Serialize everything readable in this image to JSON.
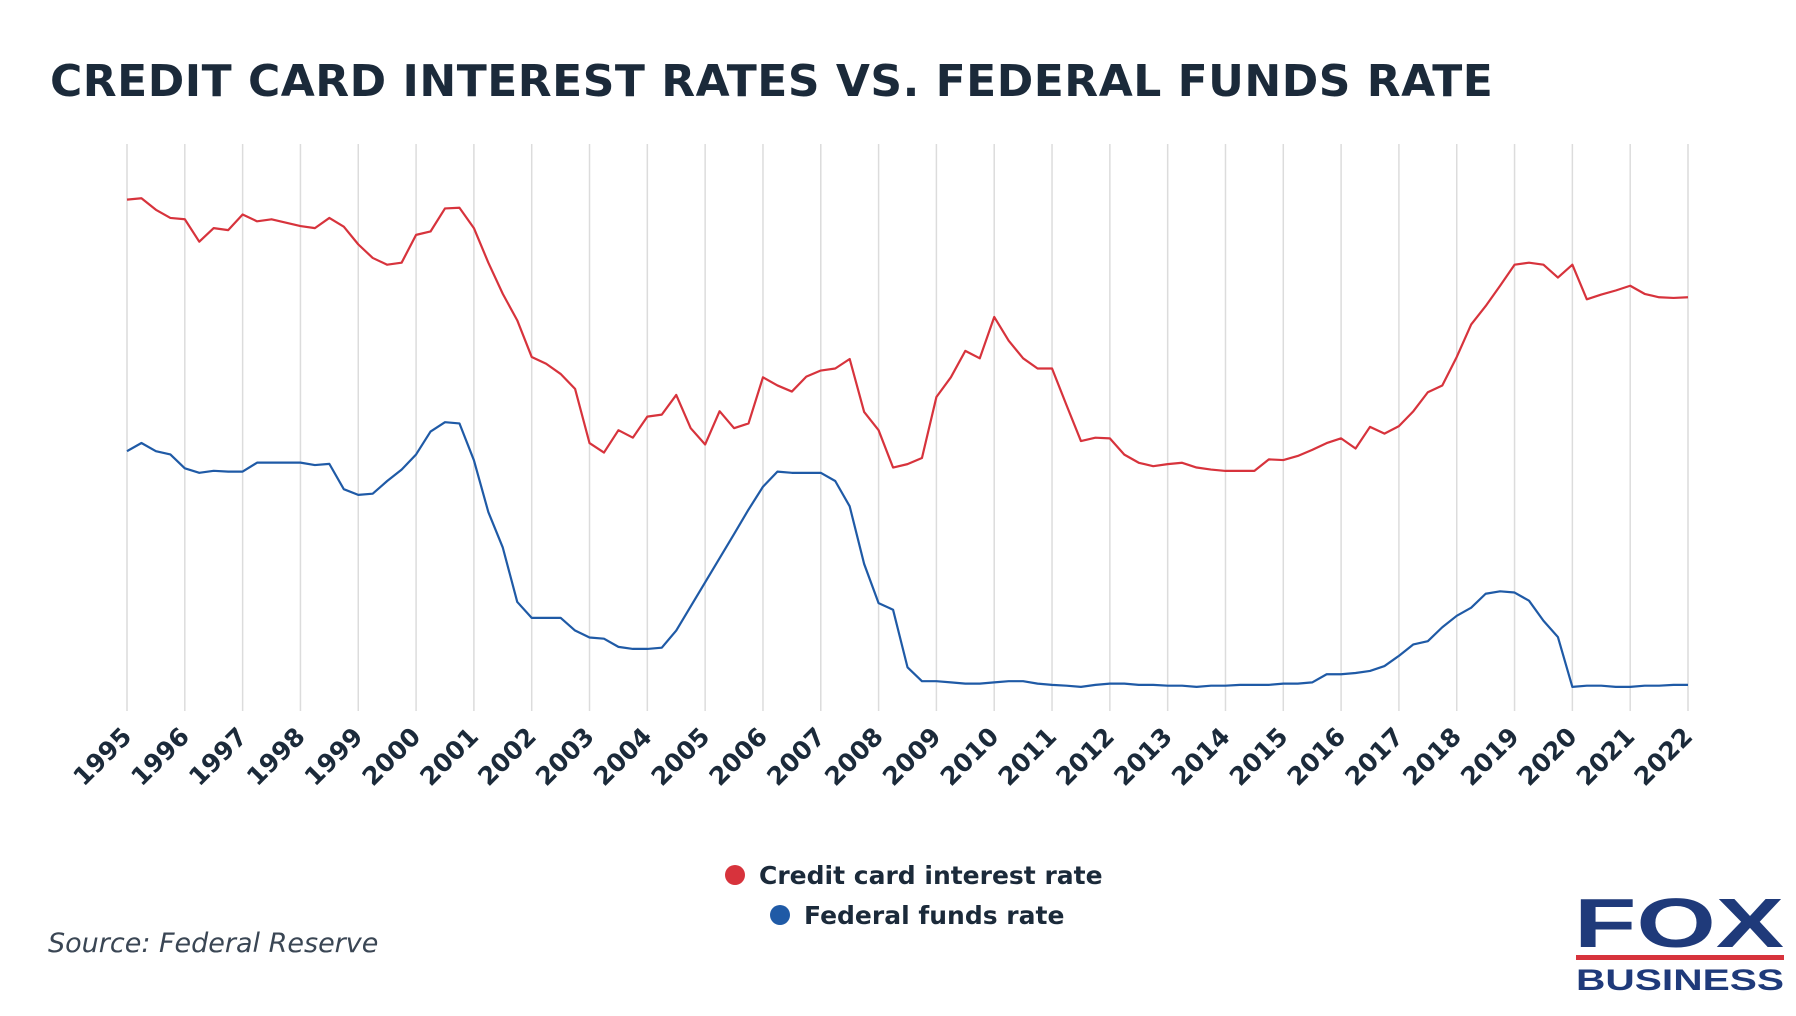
{
  "chart_data": {
    "type": "line",
    "title": "CREDIT CARD INTEREST RATES VS. FEDERAL FUNDS RATE",
    "source": "Source: Federal Reserve",
    "logo": {
      "top": "FOX",
      "bottom": "BUSINESS"
    },
    "x": [
      1995,
      1995.25,
      1995.5,
      1995.75,
      1996,
      1996.25,
      1996.5,
      1996.75,
      1997,
      1997.25,
      1997.5,
      1997.75,
      1998,
      1998.25,
      1998.5,
      1998.75,
      1999,
      1999.25,
      1999.5,
      1999.75,
      2000,
      2000.25,
      2000.5,
      2000.75,
      2001,
      2001.25,
      2001.5,
      2001.75,
      2002,
      2002.25,
      2002.5,
      2002.75,
      2003,
      2003.25,
      2003.5,
      2003.75,
      2004,
      2004.25,
      2004.5,
      2004.75,
      2005,
      2005.25,
      2005.5,
      2005.75,
      2006,
      2006.25,
      2006.5,
      2006.75,
      2007,
      2007.25,
      2007.5,
      2007.75,
      2008,
      2008.25,
      2008.5,
      2008.75,
      2009,
      2009.25,
      2009.5,
      2009.75,
      2010,
      2010.25,
      2010.5,
      2010.75,
      2011,
      2011.25,
      2011.5,
      2011.75,
      2012,
      2012.25,
      2012.5,
      2012.75,
      2013,
      2013.25,
      2013.5,
      2013.75,
      2014,
      2014.25,
      2014.5,
      2014.75,
      2015,
      2015.25,
      2015.5,
      2015.75,
      2016,
      2016.25,
      2016.5,
      2016.75,
      2017,
      2017.25,
      2017.5,
      2017.75,
      2018,
      2018.25,
      2018.5,
      2018.75,
      2019,
      2019.25,
      2019.5,
      2019.75,
      2020,
      2020.25,
      2020.5,
      2020.75,
      2021,
      2021.25,
      2021.5,
      2021.75,
      2022
    ],
    "xlim": [
      1995,
      2022
    ],
    "xticks": [
      1995,
      1996,
      1997,
      1998,
      1999,
      2000,
      2001,
      2002,
      2003,
      2004,
      2005,
      2006,
      2007,
      2008,
      2009,
      2010,
      2011,
      2012,
      2013,
      2014,
      2015,
      2016,
      2017,
      2018,
      2019,
      2020,
      2021,
      2022
    ],
    "ylim": [
      -0.56,
      13.32
    ],
    "y2lim": [
      8.44,
      16.8
    ],
    "grid": true,
    "series": [
      {
        "name": "Credit card interest rate",
        "color": "#d7333c",
        "axis": "y2",
        "values": [
          15.98,
          16.0,
          15.83,
          15.71,
          15.69,
          15.36,
          15.56,
          15.53,
          15.76,
          15.66,
          15.69,
          15.64,
          15.59,
          15.56,
          15.71,
          15.58,
          15.32,
          15.12,
          15.02,
          15.05,
          15.46,
          15.51,
          15.85,
          15.86,
          15.56,
          15.05,
          14.59,
          14.2,
          13.66,
          13.56,
          13.41,
          13.19,
          12.39,
          12.25,
          12.58,
          12.47,
          12.78,
          12.81,
          13.1,
          12.61,
          12.37,
          12.86,
          12.61,
          12.68,
          13.36,
          13.24,
          13.15,
          13.37,
          13.46,
          13.49,
          13.63,
          12.85,
          12.58,
          12.03,
          12.08,
          12.17,
          13.07,
          13.36,
          13.75,
          13.64,
          14.25,
          13.9,
          13.64,
          13.49,
          13.49,
          12.95,
          12.42,
          12.47,
          12.46,
          12.22,
          12.1,
          12.05,
          12.08,
          12.1,
          12.03,
          12.0,
          11.98,
          11.98,
          11.98,
          12.15,
          12.14,
          12.2,
          12.29,
          12.39,
          12.46,
          12.31,
          12.63,
          12.53,
          12.64,
          12.86,
          13.14,
          13.24,
          13.66,
          14.14,
          14.41,
          14.71,
          15.02,
          15.05,
          15.02,
          14.83,
          15.02,
          14.51,
          14.58,
          14.64,
          14.71,
          14.59,
          14.54,
          14.53,
          14.54
        ]
      },
      {
        "name": "Federal funds rate",
        "color": "#1f5aa6",
        "values": [
          5.8,
          6.0,
          5.8,
          5.72,
          5.38,
          5.27,
          5.32,
          5.3,
          5.3,
          5.52,
          5.52,
          5.52,
          5.52,
          5.46,
          5.49,
          4.87,
          4.73,
          4.76,
          5.07,
          5.35,
          5.72,
          6.28,
          6.51,
          6.48,
          5.58,
          4.31,
          3.44,
          2.11,
          1.72,
          1.72,
          1.72,
          1.41,
          1.24,
          1.21,
          1.01,
          0.96,
          0.96,
          0.99,
          1.41,
          2.0,
          2.59,
          3.18,
          3.77,
          4.37,
          4.93,
          5.3,
          5.27,
          5.27,
          5.27,
          5.07,
          4.45,
          3.04,
          2.08,
          1.92,
          0.51,
          0.17,
          0.17,
          0.14,
          0.11,
          0.11,
          0.14,
          0.17,
          0.17,
          0.11,
          0.08,
          0.06,
          0.03,
          0.08,
          0.11,
          0.11,
          0.08,
          0.08,
          0.06,
          0.06,
          0.03,
          0.06,
          0.06,
          0.08,
          0.08,
          0.08,
          0.11,
          0.11,
          0.14,
          0.34,
          0.34,
          0.37,
          0.42,
          0.54,
          0.79,
          1.07,
          1.15,
          1.49,
          1.77,
          1.97,
          2.31,
          2.37,
          2.34,
          2.14,
          1.65,
          1.25,
          0.03,
          0.06,
          0.06,
          0.03,
          0.03,
          0.06,
          0.06,
          0.08,
          0.08
        ]
      }
    ]
  }
}
